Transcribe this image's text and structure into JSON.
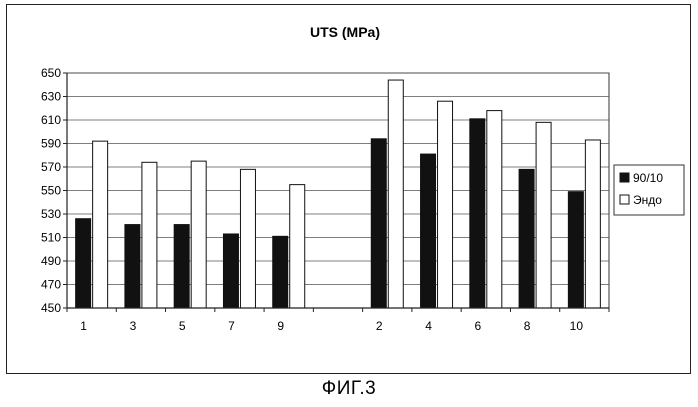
{
  "chart_data": {
    "type": "bar",
    "title": "UTS (MPa)",
    "xlabel": "",
    "ylabel": "",
    "ylim": [
      450,
      650
    ],
    "yticks": [
      450,
      470,
      490,
      510,
      530,
      550,
      570,
      590,
      610,
      630,
      650
    ],
    "categories": [
      "1",
      "3",
      "5",
      "7",
      "9",
      "",
      "2",
      "4",
      "6",
      "8",
      "10"
    ],
    "series": [
      {
        "name": "90/10",
        "color": "#111111",
        "values": [
          526,
          521,
          521,
          513,
          511,
          null,
          594,
          581,
          611,
          568,
          549
        ]
      },
      {
        "name": "Эндо",
        "color": "#ffffff",
        "values": [
          592,
          574,
          575,
          568,
          555,
          null,
          644,
          626,
          618,
          608,
          593
        ]
      }
    ],
    "grid": true,
    "legend": "right"
  },
  "caption": "ФИГ.3"
}
